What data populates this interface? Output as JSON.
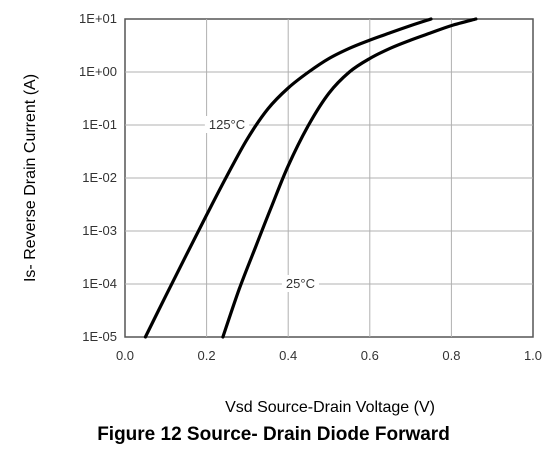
{
  "chart_data": {
    "type": "line",
    "title": "",
    "xlabel": "Vsd Source-Drain Voltage (V)",
    "ylabel": "Is- Reverse Drain Current (A)",
    "xlim": [
      0.0,
      1.0
    ],
    "ylim_log10": [
      -5,
      1
    ],
    "y_scale": "log",
    "grid": true,
    "x_tick_labels": [
      "0.0",
      "0.2",
      "0.4",
      "0.6",
      "0.8",
      "1.0"
    ],
    "y_tick_labels": [
      "1E-05",
      "1E-04",
      "1E-03",
      "1E-02",
      "1E-01",
      "1E+00",
      "1E+01"
    ],
    "series": [
      {
        "name": "125°C",
        "x": [
          0.05,
          0.1,
          0.15,
          0.2,
          0.25,
          0.3,
          0.35,
          0.4,
          0.45,
          0.5,
          0.55,
          0.6,
          0.65,
          0.7,
          0.75
        ],
        "y": [
          1e-05,
          6e-05,
          0.00035,
          0.002,
          0.011,
          0.055,
          0.2,
          0.5,
          1.0,
          1.8,
          2.8,
          4.0,
          5.5,
          7.5,
          10
        ]
      },
      {
        "name": "25°C",
        "x": [
          0.24,
          0.28,
          0.32,
          0.36,
          0.4,
          0.45,
          0.5,
          0.55,
          0.6,
          0.65,
          0.7,
          0.75,
          0.8,
          0.86
        ],
        "y": [
          1e-05,
          8e-05,
          0.0005,
          0.003,
          0.017,
          0.1,
          0.4,
          1.0,
          1.8,
          2.8,
          4.0,
          5.5,
          7.5,
          10
        ]
      }
    ],
    "annotations": [
      "125°C",
      "25°C"
    ]
  },
  "figure": {
    "caption": "Figure 12 Source- Drain Diode Forward"
  },
  "colors": {
    "line": "#000000",
    "grid": "#b0b0b0",
    "frame": "#555555"
  }
}
